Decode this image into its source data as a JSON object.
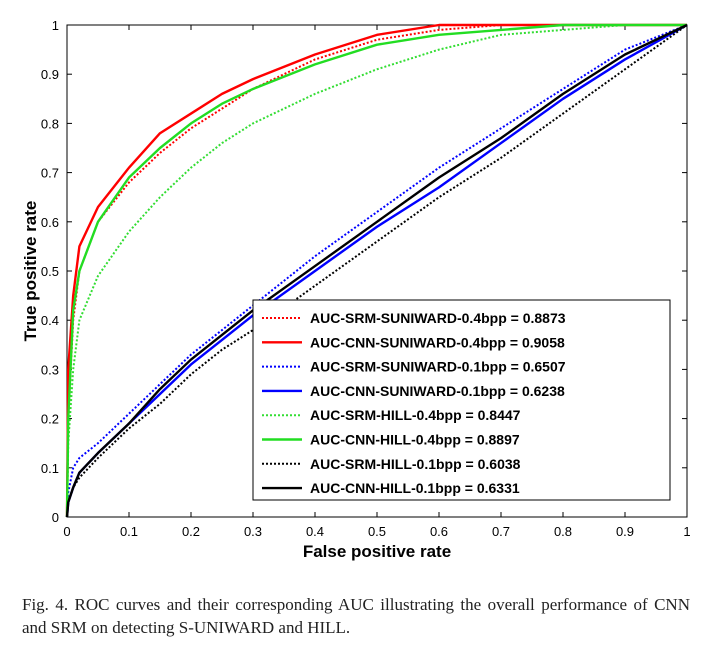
{
  "chart_data": {
    "type": "line",
    "title": "",
    "xlabel": "False positive rate",
    "ylabel": "True positive rate",
    "xlim": [
      0,
      1
    ],
    "ylim": [
      0,
      1
    ],
    "xticks": [
      "0",
      "0.1",
      "0.2",
      "0.3",
      "0.4",
      "0.5",
      "0.6",
      "0.7",
      "0.8",
      "0.9",
      "1"
    ],
    "yticks": [
      "0",
      "0.1",
      "0.2",
      "0.3",
      "0.4",
      "0.5",
      "0.6",
      "0.7",
      "0.8",
      "0.9",
      "1"
    ],
    "grid": false,
    "legend_position": "bottom-right",
    "series": [
      {
        "name": "AUC-SRM-SUNIWARD-0.4bpp = 0.8873",
        "color": "#ff0000",
        "style": "dotted",
        "x": [
          0,
          0.002,
          0.01,
          0.02,
          0.05,
          0.1,
          0.15,
          0.2,
          0.25,
          0.3,
          0.4,
          0.5,
          0.6,
          0.7,
          0.8,
          0.9,
          1
        ],
        "y": [
          0,
          0.2,
          0.4,
          0.5,
          0.6,
          0.68,
          0.74,
          0.79,
          0.83,
          0.87,
          0.93,
          0.97,
          0.99,
          1,
          1,
          1,
          1
        ]
      },
      {
        "name": "AUC-CNN-SUNIWARD-0.4bpp = 0.9058",
        "color": "#ff0000",
        "style": "solid",
        "x": [
          0,
          0.002,
          0.01,
          0.02,
          0.05,
          0.1,
          0.15,
          0.2,
          0.25,
          0.3,
          0.4,
          0.5,
          0.6,
          0.7,
          0.8,
          0.9,
          1
        ],
        "y": [
          0,
          0.3,
          0.45,
          0.55,
          0.63,
          0.71,
          0.78,
          0.82,
          0.86,
          0.89,
          0.94,
          0.98,
          1,
          1,
          1,
          1,
          1
        ]
      },
      {
        "name": "AUC-SRM-SUNIWARD-0.1bpp = 0.6507",
        "color": "#0000ff",
        "style": "dotted",
        "x": [
          0,
          0.002,
          0.01,
          0.02,
          0.05,
          0.1,
          0.15,
          0.2,
          0.25,
          0.3,
          0.4,
          0.5,
          0.6,
          0.7,
          0.8,
          0.9,
          1
        ],
        "y": [
          0,
          0.05,
          0.1,
          0.12,
          0.15,
          0.21,
          0.27,
          0.33,
          0.38,
          0.43,
          0.53,
          0.62,
          0.71,
          0.79,
          0.87,
          0.95,
          1
        ]
      },
      {
        "name": "AUC-CNN-SUNIWARD-0.1bpp = 0.6238",
        "color": "#0000ff",
        "style": "solid",
        "x": [
          0,
          0.002,
          0.01,
          0.02,
          0.05,
          0.1,
          0.15,
          0.2,
          0.25,
          0.3,
          0.4,
          0.5,
          0.6,
          0.7,
          0.8,
          0.9,
          1
        ],
        "y": [
          0,
          0.03,
          0.06,
          0.09,
          0.13,
          0.19,
          0.25,
          0.31,
          0.36,
          0.41,
          0.5,
          0.59,
          0.67,
          0.76,
          0.85,
          0.93,
          1
        ]
      },
      {
        "name": "AUC-SRM-HILL-0.4bpp = 0.8447",
        "color": "#33dd33",
        "style": "dotted",
        "x": [
          0,
          0.002,
          0.01,
          0.02,
          0.05,
          0.1,
          0.15,
          0.2,
          0.25,
          0.3,
          0.4,
          0.5,
          0.6,
          0.7,
          0.8,
          0.9,
          1
        ],
        "y": [
          0,
          0.15,
          0.3,
          0.4,
          0.49,
          0.58,
          0.65,
          0.71,
          0.76,
          0.8,
          0.86,
          0.91,
          0.95,
          0.98,
          0.99,
          1,
          1
        ]
      },
      {
        "name": "AUC-CNN-HILL-0.4bpp = 0.8897",
        "color": "#22dd22",
        "style": "solid",
        "x": [
          0,
          0.002,
          0.01,
          0.02,
          0.05,
          0.1,
          0.15,
          0.2,
          0.25,
          0.3,
          0.4,
          0.5,
          0.6,
          0.7,
          0.8,
          0.9,
          1
        ],
        "y": [
          0,
          0.2,
          0.42,
          0.5,
          0.6,
          0.69,
          0.75,
          0.8,
          0.84,
          0.87,
          0.92,
          0.96,
          0.98,
          0.99,
          1,
          1,
          1
        ]
      },
      {
        "name": "AUC-SRM-HILL-0.1bpp = 0.6038",
        "color": "#000000",
        "style": "dotted",
        "x": [
          0,
          0.002,
          0.01,
          0.02,
          0.05,
          0.1,
          0.15,
          0.2,
          0.25,
          0.3,
          0.4,
          0.5,
          0.6,
          0.7,
          0.8,
          0.9,
          1
        ],
        "y": [
          0,
          0.03,
          0.06,
          0.08,
          0.12,
          0.18,
          0.23,
          0.29,
          0.34,
          0.38,
          0.47,
          0.56,
          0.65,
          0.73,
          0.82,
          0.91,
          1
        ]
      },
      {
        "name": "AUC-CNN-HILL-0.1bpp = 0.6331",
        "color": "#000000",
        "style": "solid",
        "x": [
          0,
          0.002,
          0.01,
          0.02,
          0.05,
          0.1,
          0.15,
          0.2,
          0.25,
          0.3,
          0.4,
          0.5,
          0.6,
          0.7,
          0.8,
          0.9,
          1
        ],
        "y": [
          0,
          0.03,
          0.06,
          0.09,
          0.13,
          0.19,
          0.26,
          0.32,
          0.37,
          0.42,
          0.51,
          0.6,
          0.69,
          0.77,
          0.86,
          0.94,
          1
        ]
      }
    ]
  },
  "caption": "Fig. 4. ROC curves and their corresponding AUC illustrating the overall performance of CNN and SRM on detecting S-UNIWARD and HILL."
}
